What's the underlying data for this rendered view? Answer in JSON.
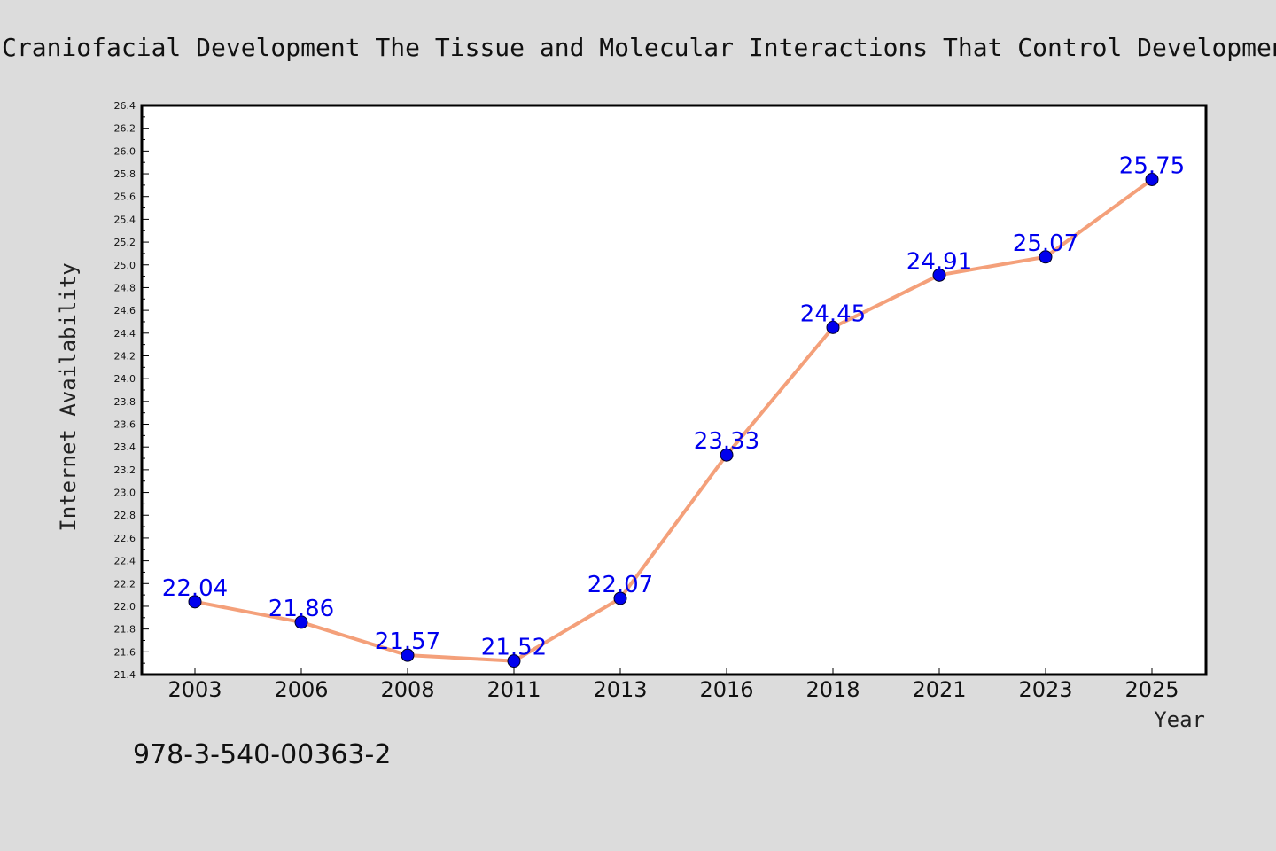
{
  "chart_data": {
    "type": "line",
    "title": "Craniofacial Development The Tissue and Molecular Interactions That Control Development of the Head",
    "xlabel": "Year",
    "ylabel": "Internet Availability",
    "categories": [
      "2003",
      "2006",
      "2008",
      "2011",
      "2013",
      "2016",
      "2018",
      "2021",
      "2023",
      "2025"
    ],
    "series": [
      {
        "values": [
          22.04,
          21.86,
          21.57,
          21.52,
          22.07,
          23.33,
          24.45,
          24.91,
          25.07,
          25.75
        ],
        "labels": [
          "22.04",
          "21.86",
          "21.57",
          "21.52",
          "22.07",
          "23.33",
          "24.45",
          "24.91",
          "25.07",
          "25.75"
        ]
      }
    ],
    "ylim": [
      21.4,
      26.4
    ],
    "yticks": [
      "21.4",
      "21.6",
      "21.8",
      "22.0",
      "22.2",
      "22.4",
      "22.6",
      "22.8",
      "23.0",
      "23.2",
      "23.4",
      "23.6",
      "23.8",
      "24.0",
      "24.2",
      "24.4",
      "24.6",
      "24.8",
      "25.0",
      "25.2",
      "25.4",
      "25.6",
      "25.8",
      "26.0",
      "26.2",
      "26.4"
    ],
    "grid": false,
    "data_labels": true,
    "colors": {
      "line": "#f4a07a",
      "marker": "#0000ee",
      "data_label": "#0000ee",
      "plot_background": "#ffffff",
      "page_background": "#dcdcdc"
    }
  },
  "footnote": "978-3-540-00363-2"
}
